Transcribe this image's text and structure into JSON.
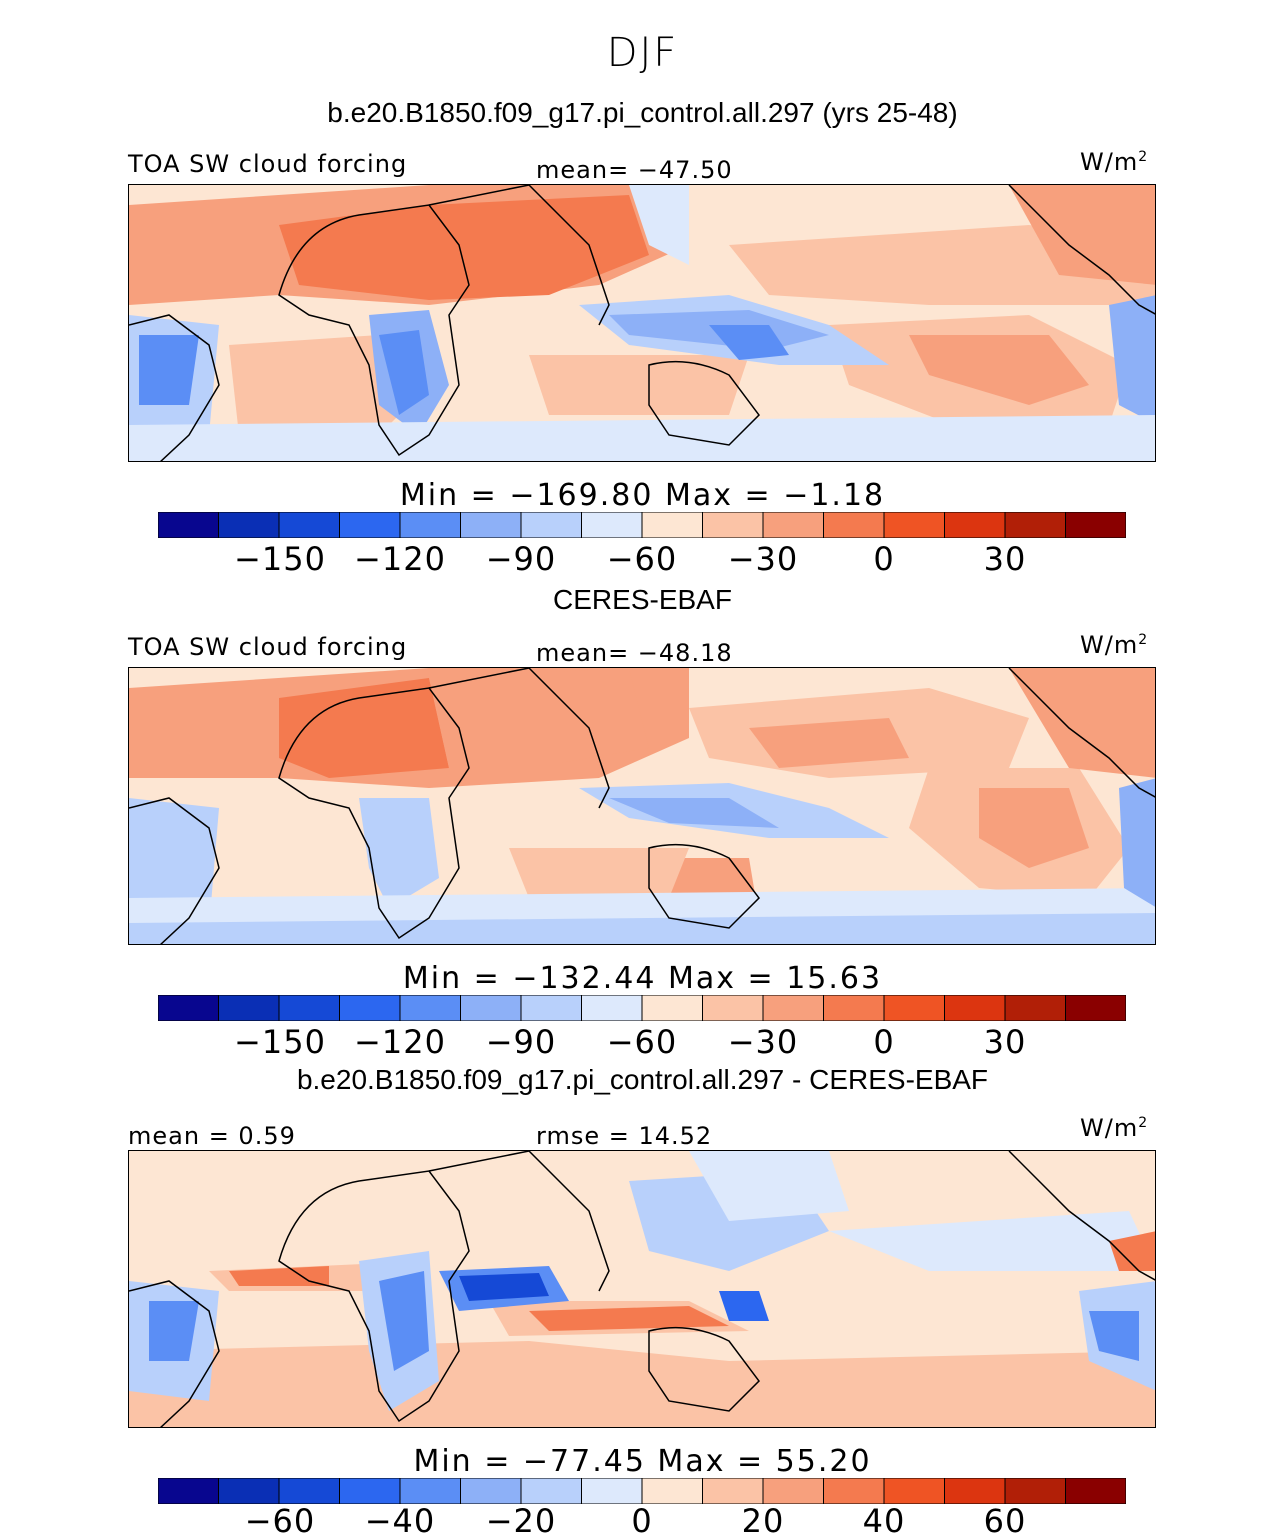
{
  "page": {
    "season": "DJF"
  },
  "chart_data": [
    {
      "type": "heatmap",
      "title": "b.e20.B1850.f09_g17.pi_control.all.297 (yrs 25-48)",
      "variable_label": "TOA SW cloud forcing",
      "mean_label": "mean= −47.50",
      "units_label": "W/m",
      "units_power": "2",
      "min_max_label": "Min  =  −169.80  Max  =   −1.18",
      "colorbar": {
        "levels": [
          "−150",
          "−120",
          "−90",
          "−60",
          "−30",
          "0",
          "30"
        ],
        "colors": [
          "#08068f",
          "#0a2fb5",
          "#1549d6",
          "#2c67f0",
          "#5b8ef5",
          "#8db0f7",
          "#b8d0fb",
          "#dde9fc",
          "#fde6d3",
          "#fbc3a6",
          "#f7a07d",
          "#f47a4f",
          "#ef5424",
          "#dc3510",
          "#b11f07",
          "#8a0000"
        ]
      }
    },
    {
      "type": "heatmap",
      "title": "CERES-EBAF",
      "variable_label": "TOA SW cloud forcing",
      "mean_label": "mean= −48.18",
      "units_label": "W/m",
      "units_power": "2",
      "min_max_label": "Min  = −132.44  Max  =   15.63",
      "colorbar": {
        "levels": [
          "−150",
          "−120",
          "−90",
          "−60",
          "−30",
          "0",
          "30"
        ],
        "colors": [
          "#08068f",
          "#0a2fb5",
          "#1549d6",
          "#2c67f0",
          "#5b8ef5",
          "#8db0f7",
          "#b8d0fb",
          "#dde9fc",
          "#fde6d3",
          "#fbc3a6",
          "#f7a07d",
          "#f47a4f",
          "#ef5424",
          "#dc3510",
          "#b11f07",
          "#8a0000"
        ]
      }
    },
    {
      "type": "heatmap",
      "title": "b.e20.B1850.f09_g17.pi_control.all.297 - CERES-EBAF",
      "mean_label": "mean =    0.59",
      "rmse_label": "rmse  =   14.52",
      "units_label": "W/m",
      "units_power": "2",
      "min_max_label": "Min  = −77.45  Max  =   55.20",
      "colorbar": {
        "levels": [
          "−60",
          "−40",
          "−20",
          "0",
          "20",
          "40",
          "60"
        ],
        "colors": [
          "#08068f",
          "#0a2fb5",
          "#1549d6",
          "#2c67f0",
          "#5b8ef5",
          "#8db0f7",
          "#b8d0fb",
          "#dde9fc",
          "#fde6d3",
          "#fbc3a6",
          "#f7a07d",
          "#f47a4f",
          "#ef5424",
          "#dc3510",
          "#b11f07",
          "#8a0000"
        ]
      }
    }
  ]
}
